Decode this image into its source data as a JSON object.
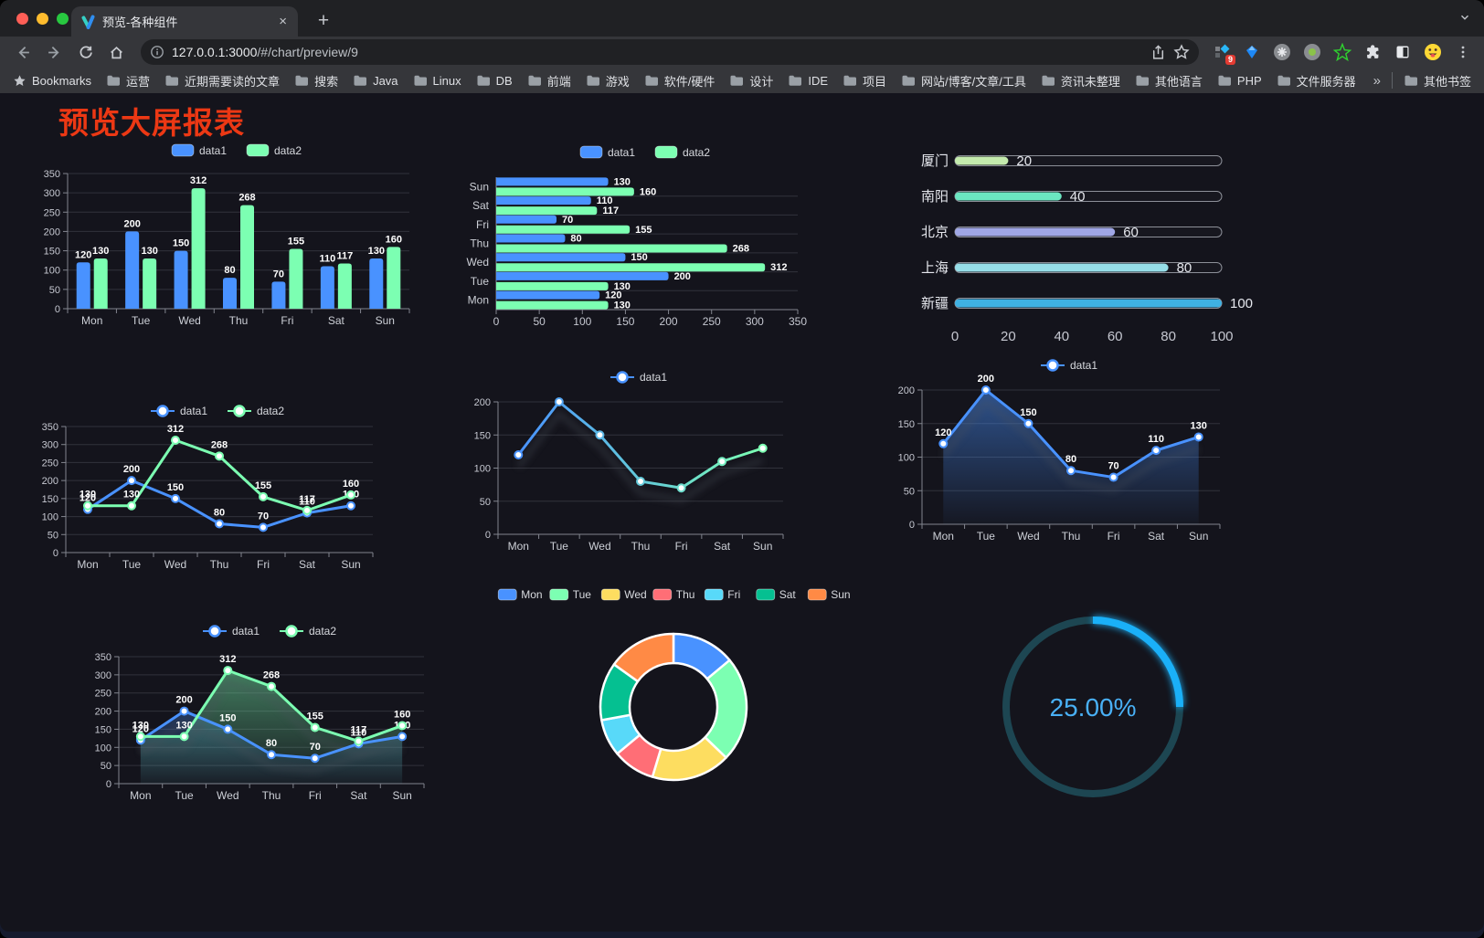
{
  "browser": {
    "tab_title": "预览-各种组件",
    "close_icon": "×",
    "new_tab_icon": "+",
    "url_host": "127.0.0.1:3000",
    "url_path": "/#/chart/preview/9",
    "ext_badge": "9",
    "bookmarks_label": "Bookmarks",
    "bookmarks": [
      "运营",
      "近期需要读的文章",
      "搜索",
      "Java",
      "Linux",
      "DB",
      "前端",
      "游戏",
      "软件/硬件",
      "设计",
      "IDE",
      "项目",
      "网站/博客/文章/工具",
      "资讯未整理",
      "其他语言",
      "PHP",
      "文件服务器"
    ],
    "bookmarks_overflow": "»",
    "other_bookmarks": "其他书签"
  },
  "page": {
    "title": "预览大屏报表",
    "title_color": "#ec3814"
  },
  "chart_data": [
    {
      "id": "c1",
      "type": "bar",
      "title": "",
      "categories": [
        "Mon",
        "Tue",
        "Wed",
        "Thu",
        "Fri",
        "Sat",
        "Sun"
      ],
      "series": [
        {
          "name": "data1",
          "color": "#4992ff",
          "values": [
            120,
            200,
            150,
            80,
            70,
            110,
            130
          ]
        },
        {
          "name": "data2",
          "color": "#7cffb2",
          "values": [
            130,
            130,
            312,
            268,
            155,
            117,
            160
          ]
        }
      ],
      "ylim": [
        0,
        350
      ],
      "ytick": 50,
      "show_labels": true,
      "legend_position": "top",
      "grid": true
    },
    {
      "id": "c2",
      "type": "hbar",
      "title": "",
      "categories": [
        "Mon",
        "Tue",
        "Wed",
        "Thu",
        "Fri",
        "Sat",
        "Sun"
      ],
      "series": [
        {
          "name": "data1",
          "color": "#4992ff",
          "values": [
            120,
            200,
            150,
            80,
            70,
            110,
            130
          ]
        },
        {
          "name": "data2",
          "color": "#7cffb2",
          "values": [
            130,
            130,
            312,
            268,
            155,
            117,
            160
          ]
        }
      ],
      "xlim": [
        0,
        350
      ],
      "xtick": 50,
      "show_labels": true,
      "legend_position": "top",
      "grid": true
    },
    {
      "id": "c3",
      "type": "progress",
      "title": "",
      "categories": [
        "厦门",
        "南阳",
        "北京",
        "上海",
        "新疆"
      ],
      "values": [
        20,
        40,
        60,
        80,
        100
      ],
      "colors": [
        "#c4ebad",
        "#6be6c1",
        "#a0a7e6",
        "#96dee8",
        "#3fb1e3"
      ],
      "xlim": [
        0,
        100
      ],
      "xticks": [
        0,
        20,
        40,
        60,
        80,
        100
      ]
    },
    {
      "id": "c4",
      "type": "line",
      "title": "",
      "categories": [
        "Mon",
        "Tue",
        "Wed",
        "Thu",
        "Fri",
        "Sat",
        "Sun"
      ],
      "series": [
        {
          "name": "data1",
          "color": "#4992ff",
          "values": [
            120,
            200,
            150,
            80,
            70,
            110,
            130
          ]
        },
        {
          "name": "data2",
          "color": "#7cffb2",
          "values": [
            130,
            130,
            312,
            268,
            155,
            117,
            160
          ]
        }
      ],
      "ylim": [
        0,
        350
      ],
      "ytick": 50,
      "show_labels": true,
      "markers": true,
      "legend_position": "top",
      "grid": true
    },
    {
      "id": "c5",
      "type": "line",
      "title": "",
      "categories": [
        "Mon",
        "Tue",
        "Wed",
        "Thu",
        "Fri",
        "Sat",
        "Sun"
      ],
      "series": [
        {
          "name": "data1",
          "color": "#4992ff",
          "gradient": [
            "#4992ff",
            "#7cffb2"
          ],
          "values": [
            120,
            200,
            150,
            80,
            70,
            110,
            130
          ]
        }
      ],
      "ylim": [
        0,
        200
      ],
      "ytick": 50,
      "show_labels": false,
      "markers": true,
      "shadow": true,
      "legend_position": "top",
      "grid": true
    },
    {
      "id": "c6",
      "type": "line",
      "title": "",
      "categories": [
        "Mon",
        "Tue",
        "Wed",
        "Thu",
        "Fri",
        "Sat",
        "Sun"
      ],
      "series": [
        {
          "name": "data1",
          "color": "#4992ff",
          "area": true,
          "values": [
            120,
            200,
            150,
            80,
            70,
            110,
            130
          ]
        }
      ],
      "ylim": [
        0,
        200
      ],
      "ytick": 50,
      "show_labels": true,
      "markers": true,
      "shadow": true,
      "legend_position": "top",
      "grid": true
    },
    {
      "id": "c7",
      "type": "line",
      "title": "",
      "categories": [
        "Mon",
        "Tue",
        "Wed",
        "Thu",
        "Fri",
        "Sat",
        "Sun"
      ],
      "series": [
        {
          "name": "data1",
          "color": "#4992ff",
          "area": true,
          "values": [
            120,
            200,
            150,
            80,
            70,
            110,
            130
          ]
        },
        {
          "name": "data2",
          "color": "#7cffb2",
          "area": true,
          "values": [
            130,
            130,
            312,
            268,
            155,
            117,
            160
          ]
        }
      ],
      "ylim": [
        0,
        350
      ],
      "ytick": 50,
      "show_labels": true,
      "markers": true,
      "shadow": true,
      "legend_position": "top",
      "grid": true
    },
    {
      "id": "c8",
      "type": "pie",
      "title": "",
      "categories": [
        "Mon",
        "Tue",
        "Wed",
        "Thu",
        "Fri",
        "Sat",
        "Sun"
      ],
      "values": [
        120,
        200,
        150,
        80,
        70,
        110,
        130
      ],
      "colors": [
        "#4992ff",
        "#7cffb2",
        "#fddd60",
        "#ff6e76",
        "#58d9f9",
        "#05c091",
        "#ff8a45"
      ],
      "donut": true,
      "legend_position": "top"
    },
    {
      "id": "c9",
      "type": "gauge",
      "title": "",
      "value": 25,
      "display": "25.00%",
      "color": "#1ab0f8",
      "track_color": "#1d4652",
      "text_color": "#49b0f5"
    }
  ]
}
